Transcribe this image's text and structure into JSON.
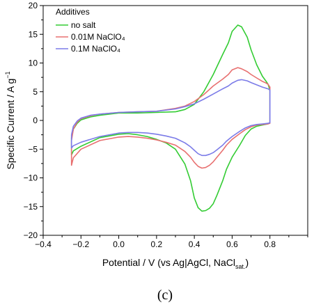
{
  "chart_data": {
    "type": "line",
    "xlabel_prefix": "Potential / V (vs Ag|AgCl, NaCl",
    "xlabel_sub": "sat.",
    "xlabel_suffix": ")",
    "ylabel_prefix": "Specific Current / A g",
    "ylabel_sup": "−1",
    "xlim": [
      -0.4,
      1.0
    ],
    "ylim": [
      -20,
      20
    ],
    "xticks": [
      -0.4,
      -0.2,
      0.0,
      0.2,
      0.4,
      0.6,
      0.8
    ],
    "xtick_labels": [
      "−0.4",
      "−0.2",
      "0.0",
      "0.2",
      "0.4",
      "0.6",
      "0.8"
    ],
    "yticks": [
      -20,
      -15,
      -10,
      -5,
      0,
      5,
      10,
      15,
      20
    ],
    "ytick_labels": [
      "−20",
      "−15",
      "−10",
      "−5",
      "0",
      "5",
      "10",
      "15",
      "20"
    ],
    "grid": false,
    "legend_title": "Additives",
    "legend_position": "top-left",
    "panel_label": "(c)",
    "series": [
      {
        "name": "no salt",
        "color": "#33cc33",
        "x": [
          -0.25,
          -0.24,
          -0.22,
          -0.2,
          -0.15,
          -0.1,
          0.0,
          0.1,
          0.2,
          0.3,
          0.35,
          0.4,
          0.45,
          0.5,
          0.55,
          0.58,
          0.6,
          0.63,
          0.65,
          0.68,
          0.7,
          0.73,
          0.76,
          0.78,
          0.79,
          0.8,
          0.8,
          0.8,
          0.79,
          0.76,
          0.73,
          0.7,
          0.67,
          0.64,
          0.6,
          0.57,
          0.55,
          0.52,
          0.5,
          0.48,
          0.46,
          0.44,
          0.42,
          0.4,
          0.38,
          0.35,
          0.3,
          0.25,
          0.2,
          0.15,
          0.1,
          0.05,
          0.0,
          -0.1,
          -0.2,
          -0.24,
          -0.25,
          -0.25
        ],
        "y": [
          -3.0,
          -1.5,
          -0.5,
          0.1,
          0.6,
          0.9,
          1.3,
          1.3,
          1.4,
          1.5,
          1.9,
          2.8,
          5.0,
          8.0,
          11.5,
          13.5,
          15.5,
          16.6,
          16.3,
          14.5,
          12.3,
          9.7,
          7.7,
          6.8,
          6.3,
          5.3,
          2.0,
          -0.4,
          -0.6,
          -0.8,
          -1.0,
          -1.5,
          -2.6,
          -4.3,
          -6.4,
          -8.5,
          -10.5,
          -13.0,
          -14.5,
          -15.3,
          -15.7,
          -15.8,
          -15.2,
          -13.5,
          -10.5,
          -7.6,
          -5.0,
          -3.9,
          -3.3,
          -2.8,
          -2.5,
          -2.3,
          -2.4,
          -3.0,
          -4.5,
          -5.3,
          -6.0,
          -3.0
        ]
      },
      {
        "name": "0.01M NaClO₄",
        "color": "#e87070",
        "x": [
          -0.25,
          -0.24,
          -0.22,
          -0.2,
          -0.15,
          -0.1,
          0.0,
          0.1,
          0.2,
          0.3,
          0.35,
          0.4,
          0.45,
          0.5,
          0.55,
          0.58,
          0.6,
          0.63,
          0.65,
          0.68,
          0.7,
          0.73,
          0.76,
          0.78,
          0.79,
          0.8,
          0.8,
          0.8,
          0.79,
          0.76,
          0.73,
          0.7,
          0.67,
          0.64,
          0.6,
          0.57,
          0.55,
          0.52,
          0.5,
          0.48,
          0.46,
          0.44,
          0.42,
          0.4,
          0.38,
          0.35,
          0.3,
          0.25,
          0.2,
          0.15,
          0.1,
          0.05,
          0.0,
          -0.1,
          -0.2,
          -0.24,
          -0.25,
          -0.25
        ],
        "y": [
          -3.5,
          -1.5,
          -0.3,
          0.3,
          0.8,
          1.1,
          1.4,
          1.5,
          1.6,
          2.1,
          2.5,
          3.3,
          4.5,
          6.0,
          7.2,
          8.0,
          8.8,
          9.2,
          9.0,
          8.5,
          8.0,
          7.4,
          6.8,
          6.5,
          6.3,
          5.8,
          2.0,
          -0.5,
          -0.6,
          -0.7,
          -0.8,
          -1.1,
          -1.6,
          -2.3,
          -3.3,
          -4.3,
          -5.2,
          -6.4,
          -7.2,
          -7.8,
          -8.2,
          -8.3,
          -8.0,
          -7.3,
          -6.4,
          -5.4,
          -4.3,
          -3.8,
          -3.4,
          -3.1,
          -2.9,
          -2.8,
          -2.9,
          -3.5,
          -5.0,
          -6.5,
          -7.8,
          -3.5
        ]
      },
      {
        "name": "0.1M NaClO₄",
        "color": "#7b7be8",
        "x": [
          -0.25,
          -0.24,
          -0.22,
          -0.2,
          -0.15,
          -0.1,
          0.0,
          0.1,
          0.2,
          0.3,
          0.35,
          0.4,
          0.45,
          0.5,
          0.55,
          0.58,
          0.6,
          0.63,
          0.65,
          0.68,
          0.7,
          0.73,
          0.76,
          0.78,
          0.79,
          0.8,
          0.8,
          0.8,
          0.79,
          0.76,
          0.73,
          0.7,
          0.67,
          0.64,
          0.6,
          0.57,
          0.55,
          0.52,
          0.5,
          0.48,
          0.46,
          0.44,
          0.42,
          0.4,
          0.38,
          0.35,
          0.3,
          0.25,
          0.2,
          0.15,
          0.1,
          0.05,
          0.0,
          -0.1,
          -0.2,
          -0.24,
          -0.25,
          -0.25
        ],
        "y": [
          -2.5,
          -1.0,
          -0.1,
          0.4,
          0.9,
          1.1,
          1.4,
          1.5,
          1.6,
          2.0,
          2.4,
          2.9,
          3.7,
          4.6,
          5.5,
          6.0,
          6.5,
          7.0,
          7.1,
          6.9,
          6.6,
          6.2,
          5.8,
          5.6,
          5.5,
          5.3,
          2.0,
          -0.4,
          -0.5,
          -0.6,
          -0.7,
          -0.9,
          -1.3,
          -1.9,
          -2.8,
          -3.6,
          -4.3,
          -5.1,
          -5.6,
          -5.9,
          -6.1,
          -6.1,
          -5.8,
          -5.2,
          -4.6,
          -3.9,
          -3.1,
          -2.7,
          -2.4,
          -2.2,
          -2.1,
          -2.1,
          -2.2,
          -2.8,
          -3.8,
          -4.4,
          -4.8,
          -2.5
        ]
      }
    ]
  }
}
